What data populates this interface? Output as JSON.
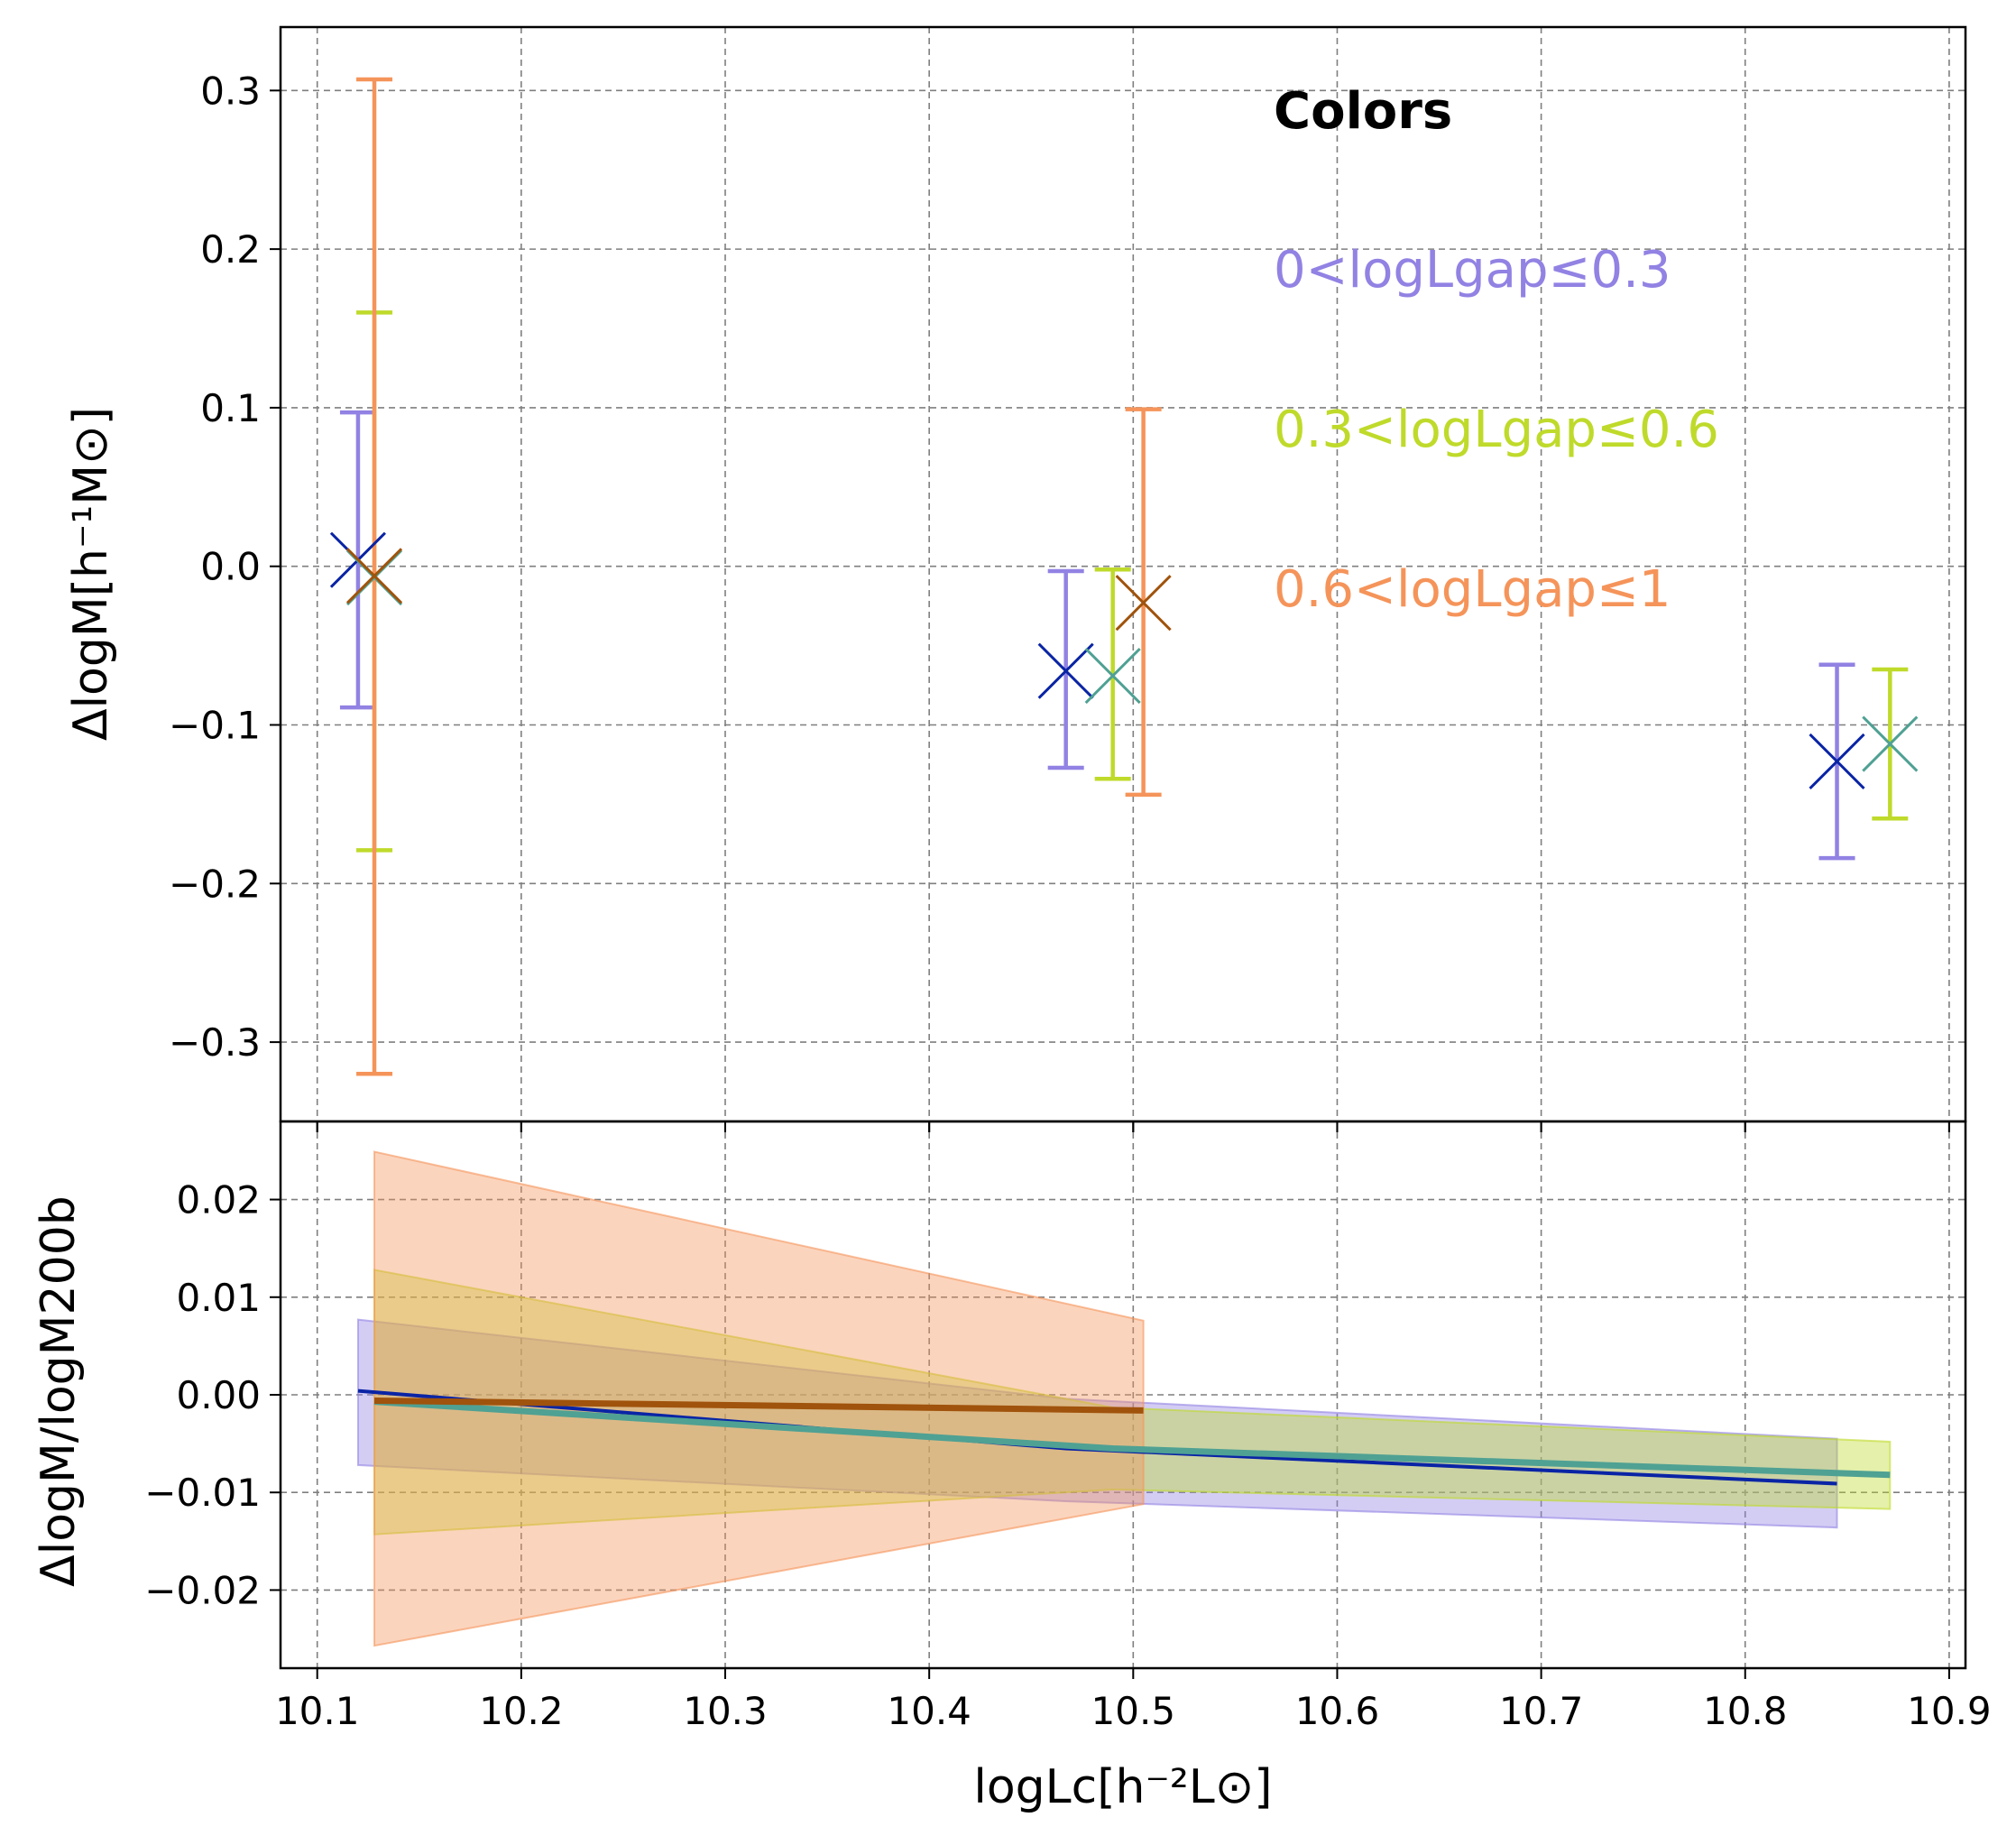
{
  "chart_data": [
    {
      "type": "scatter",
      "panel": "top",
      "ylabel": "ΔlogM[h⁻¹M⊙]",
      "xlim": [
        10.082,
        10.908
      ],
      "ylim": [
        -0.35,
        0.34
      ],
      "yticks": [
        0.3,
        0.2,
        0.1,
        0.0,
        -0.1,
        -0.2,
        -0.3
      ],
      "ytick_labels": [
        "0.3",
        "0.2",
        "0.1",
        "0.0",
        "−0.1",
        "−0.2",
        "−0.3"
      ],
      "grid": true,
      "legend_title": "Colors",
      "legend_position": "top-right",
      "series": [
        {
          "name": "0<logLgap≤0.3",
          "errorbar_color": "#9182e3",
          "marker_color": "#0a24a5",
          "points": [
            {
              "x": 10.12,
              "y": 0.004,
              "err_low": -0.089,
              "err_high": 0.097
            },
            {
              "x": 10.467,
              "y": -0.066,
              "err_low": -0.127,
              "err_high": -0.003
            },
            {
              "x": 10.845,
              "y": -0.123,
              "err_low": -0.184,
              "err_high": -0.062
            }
          ]
        },
        {
          "name": "0.3<logLgap≤0.6",
          "errorbar_color": "#bfda2a",
          "marker_color": "#4fa193",
          "points": [
            {
              "x": 10.128,
              "y": -0.007,
              "err_low": -0.179,
              "err_high": 0.16
            },
            {
              "x": 10.49,
              "y": -0.069,
              "err_low": -0.134,
              "err_high": -0.002
            },
            {
              "x": 10.871,
              "y": -0.112,
              "err_low": -0.159,
              "err_high": -0.065
            }
          ]
        },
        {
          "name": "0.6<logLgap≤1",
          "errorbar_color": "#f5945a",
          "marker_color": "#a0530c",
          "points": [
            {
              "x": 10.128,
              "y": -0.006,
              "err_low": -0.32,
              "err_high": 0.307
            },
            {
              "x": 10.505,
              "y": -0.023,
              "err_low": -0.144,
              "err_high": 0.099
            }
          ]
        }
      ]
    },
    {
      "type": "line",
      "panel": "bottom",
      "ylabel": "ΔlogM/logM200b",
      "xlabel": "logLc[h⁻²L⊙]",
      "xlim": [
        10.082,
        10.908
      ],
      "ylim": [
        -0.028,
        0.028
      ],
      "yticks": [
        0.02,
        0.01,
        0.0,
        -0.01,
        -0.02
      ],
      "ytick_labels": [
        "0.02",
        "0.01",
        "0.00",
        "−0.01",
        "−0.02"
      ],
      "xticks": [
        10.1,
        10.2,
        10.3,
        10.4,
        10.5,
        10.6,
        10.7,
        10.8,
        10.9
      ],
      "xtick_labels": [
        "10.1",
        "10.2",
        "10.3",
        "10.4",
        "10.5",
        "10.6",
        "10.7",
        "10.8",
        "10.9"
      ],
      "grid": true,
      "series": [
        {
          "name": "0<logLgap≤0.3",
          "line_color": "#0a24a5",
          "band_color": "#9182e3",
          "x": [
            10.12,
            10.467,
            10.845
          ],
          "y": [
            0.0004,
            -0.0055,
            -0.0091
          ],
          "band_low": [
            -0.0072,
            -0.0109,
            -0.0136
          ],
          "band_high": [
            0.0077,
            -0.0004,
            -0.0045
          ]
        },
        {
          "name": "0.3<logLgap≤0.6",
          "line_color": "#4fa193",
          "band_color": "#bfda2a",
          "x": [
            10.128,
            10.49,
            10.871
          ],
          "y": [
            -0.0007,
            -0.0055,
            -0.0082
          ],
          "band_low": [
            -0.0143,
            -0.0097,
            -0.0117
          ],
          "band_high": [
            0.0128,
            -0.0013,
            -0.0048
          ]
        },
        {
          "name": "0.6<logLgap≤1",
          "line_color": "#a0530c",
          "band_color": "#f5945a",
          "x": [
            10.128,
            10.505
          ],
          "y": [
            -0.0006,
            -0.0016
          ],
          "band_low": [
            -0.0257,
            -0.0112
          ],
          "band_high": [
            0.0249,
            0.0076
          ]
        }
      ]
    }
  ]
}
